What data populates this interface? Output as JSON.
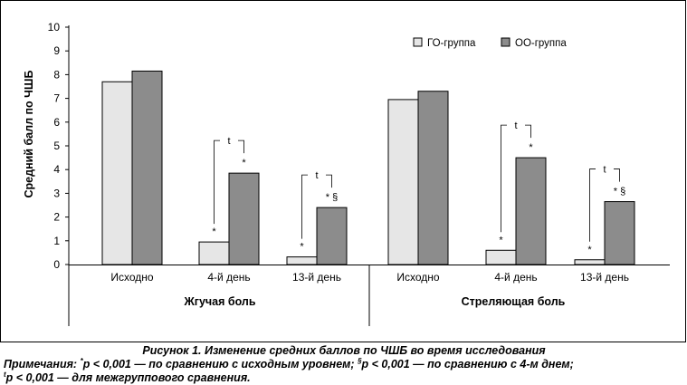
{
  "chart_data": {
    "type": "bar",
    "ylabel": "Средний балл по ЧШБ",
    "ylim": [
      0,
      10
    ],
    "yticks": [
      "0",
      "1",
      "2",
      "3",
      "4",
      "5",
      "6",
      "7",
      "8",
      "9",
      "10"
    ],
    "legend": {
      "placement": "top-right",
      "entries": [
        "ГО-группа",
        "ОО-группа"
      ]
    },
    "series": [
      {
        "name": "ГО-группа",
        "color": "#e6e6e6"
      },
      {
        "name": "ОО-группа",
        "color": "#8c8c8c"
      }
    ],
    "groups": [
      {
        "label": "Жгучая боль",
        "categories": [
          "Исходно",
          "4-й день",
          "13-й день"
        ],
        "values": {
          "ГО-группа": [
            7.7,
            0.95,
            0.32
          ],
          "ОО-группа": [
            8.15,
            3.85,
            2.4
          ]
        },
        "annotations": [
          {
            "go": "",
            "oo": "",
            "bracket": ""
          },
          {
            "go": "*",
            "oo": "*",
            "bracket": "t"
          },
          {
            "go": "*",
            "oo": "* §",
            "bracket": "t"
          }
        ]
      },
      {
        "label": "Стреляющая боль",
        "categories": [
          "Исходно",
          "4-й день",
          "13-й день"
        ],
        "values": {
          "ГО-группа": [
            6.95,
            0.6,
            0.2
          ],
          "ОО-группа": [
            7.3,
            4.5,
            2.65
          ]
        },
        "annotations": [
          {
            "go": "",
            "oo": "",
            "bracket": ""
          },
          {
            "go": "*",
            "oo": "*",
            "bracket": "t"
          },
          {
            "go": "*",
            "oo": "* §",
            "bracket": "t"
          }
        ]
      }
    ]
  },
  "caption": {
    "title": "Рисунок 1. Изменение средних баллов по ЧШБ во время исследования",
    "notes_prefix": "Примечания: ",
    "note1_mark": "*",
    "note1_text": "p < 0,001 — по сравнению с исходным уровнем; ",
    "note2_mark": "§",
    "note2_text": "p < 0,001 — по сравнению с 4-м днем;",
    "note3_mark": "t",
    "note3_text": "p < 0,001 —  для межгруппового сравнения."
  }
}
